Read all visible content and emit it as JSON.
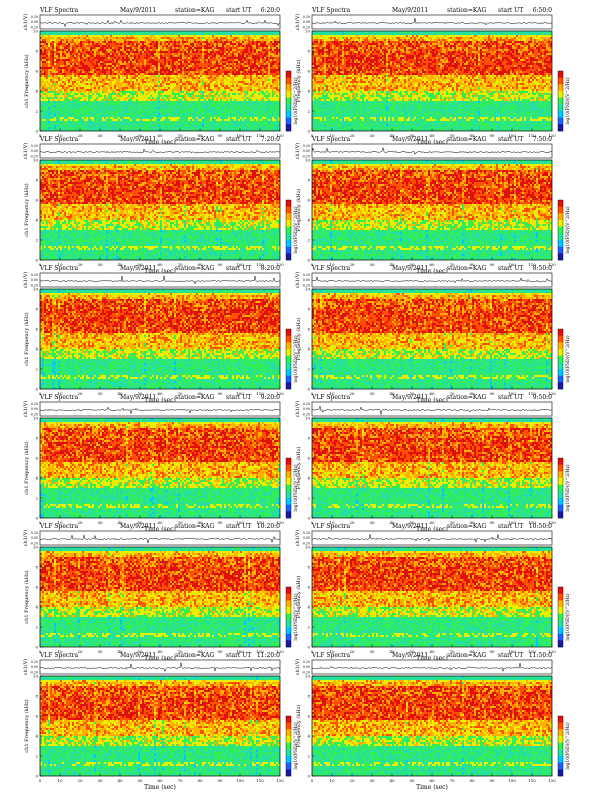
{
  "figure_title": "VLF Spectra",
  "date": "May/9/2011",
  "station_label": "station=KAG",
  "start_label": "start UT",
  "y_label_top": "ch1(V)",
  "y_label_bottom": "ch1\nFrequency (kHz)",
  "y_label_bottom_right": "Frequency (kHz)",
  "x_label": "Time (sec)",
  "colorbar_label": "log10(PSD)(V^2/Hz)",
  "palette": [
    "#1a1aa0",
    "#1f5fff",
    "#00c8ff",
    "#25e0a0",
    "#33ee55",
    "#e8f000",
    "#ffb000",
    "#ff5000",
    "#e01010",
    "#ffffff"
  ],
  "chart_data": [
    {
      "type": "heatmap",
      "panel": "r1-left",
      "start_ut": "6:20:0",
      "xlim": [
        0,
        120
      ],
      "xticks": [
        0,
        10,
        20,
        30,
        40,
        50,
        60,
        70,
        80,
        90,
        100,
        110,
        120
      ],
      "ylim_freq": [
        0,
        10
      ],
      "yticks_freq": [
        0,
        2,
        4,
        6,
        8,
        10
      ],
      "ylim_volt": [
        -0.2,
        0.2
      ],
      "yticks_volt": [
        "0.20",
        "0.00",
        "-0.20"
      ]
    },
    {
      "type": "heatmap",
      "panel": "r1-right",
      "start_ut": "6:50:0",
      "xlim": [
        0,
        120
      ],
      "xticks": [
        0,
        10,
        20,
        30,
        40,
        50,
        60,
        70,
        80,
        90,
        100,
        110,
        120
      ],
      "ylim_freq": [
        0,
        10
      ],
      "yticks_freq": [
        0,
        2,
        4,
        6,
        8,
        10
      ],
      "ylim_volt": [
        -0.2,
        0.2
      ],
      "yticks_volt": [
        "0.20",
        "0.00",
        "-0.20"
      ]
    },
    {
      "type": "heatmap",
      "panel": "r2-left",
      "start_ut": "7:20:0",
      "xlim": [
        0,
        120
      ],
      "xticks": [
        0,
        10,
        20,
        30,
        40,
        50,
        60,
        70,
        80,
        90,
        100,
        110,
        120
      ],
      "ylim_freq": [
        0,
        10
      ],
      "yticks_freq": [
        0,
        2,
        4,
        6,
        8,
        10
      ],
      "ylim_volt": [
        -0.2,
        0.2
      ],
      "yticks_volt": [
        "0.20",
        "0.00",
        "-0.20"
      ]
    },
    {
      "type": "heatmap",
      "panel": "r2-right",
      "start_ut": "7:50:0",
      "xlim": [
        0,
        120
      ],
      "xticks": [
        0,
        10,
        20,
        30,
        40,
        50,
        60,
        70,
        80,
        90,
        100,
        110,
        120
      ],
      "ylim_freq": [
        0,
        10
      ],
      "yticks_freq": [
        0,
        2,
        4,
        6,
        8,
        10
      ],
      "ylim_volt": [
        -0.2,
        0.2
      ],
      "yticks_volt": [
        "0.20",
        "0.00",
        "-0.20"
      ]
    },
    {
      "type": "heatmap",
      "panel": "r3-left",
      "start_ut": "8:20:0",
      "xlim": [
        0,
        120
      ],
      "xticks": [
        0,
        10,
        20,
        30,
        40,
        50,
        60,
        70,
        80,
        90,
        100,
        110,
        120
      ],
      "ylim_freq": [
        0,
        10
      ],
      "yticks_freq": [
        0,
        2,
        4,
        6,
        8,
        10
      ],
      "ylim_volt": [
        -0.2,
        0.2
      ],
      "yticks_volt": [
        "0.20",
        "0.00",
        "-0.20"
      ]
    },
    {
      "type": "heatmap",
      "panel": "r3-right",
      "start_ut": "8:50:0",
      "xlim": [
        0,
        120
      ],
      "xticks": [
        0,
        10,
        20,
        30,
        40,
        50,
        60,
        70,
        80,
        90,
        100,
        110,
        120
      ],
      "ylim_freq": [
        0,
        10
      ],
      "yticks_freq": [
        0,
        2,
        4,
        6,
        8,
        10
      ],
      "ylim_volt": [
        -0.2,
        0.2
      ],
      "yticks_volt": [
        "0.20",
        "0.00",
        "-0.20"
      ]
    },
    {
      "type": "heatmap",
      "panel": "r4-left",
      "start_ut": "9:20:0",
      "xlim": [
        0,
        120
      ],
      "xticks": [
        0,
        10,
        20,
        30,
        40,
        50,
        60,
        70,
        80,
        90,
        100,
        110,
        120
      ],
      "ylim_freq": [
        0,
        10
      ],
      "yticks_freq": [
        0,
        2,
        4,
        6,
        8,
        10
      ],
      "ylim_volt": [
        -0.2,
        0.2
      ],
      "yticks_volt": [
        "0.20",
        "0.00",
        "-0.20"
      ]
    },
    {
      "type": "heatmap",
      "panel": "r4-right",
      "start_ut": "9:50:0",
      "xlim": [
        0,
        120
      ],
      "xticks": [
        0,
        10,
        20,
        30,
        40,
        50,
        60,
        70,
        80,
        90,
        100,
        110,
        120
      ],
      "ylim_freq": [
        0,
        10
      ],
      "yticks_freq": [
        0,
        2,
        4,
        6,
        8,
        10
      ],
      "ylim_volt": [
        -0.2,
        0.2
      ],
      "yticks_volt": [
        "0.20",
        "0.00",
        "-0.20"
      ]
    },
    {
      "type": "heatmap",
      "panel": "r5-left",
      "start_ut": "10:20:0",
      "xlim": [
        0,
        120
      ],
      "xticks": [
        0,
        10,
        20,
        30,
        40,
        50,
        60,
        70,
        80,
        90,
        100,
        110,
        120
      ],
      "ylim_freq": [
        0,
        10
      ],
      "yticks_freq": [
        0,
        2,
        4,
        6,
        8,
        10
      ],
      "ylim_volt": [
        -0.2,
        0.2
      ],
      "yticks_volt": [
        "0.20",
        "0.00",
        "-0.20"
      ]
    },
    {
      "type": "heatmap",
      "panel": "r5-right",
      "start_ut": "10:50:0",
      "xlim": [
        0,
        120
      ],
      "xticks": [
        0,
        10,
        20,
        30,
        40,
        50,
        60,
        70,
        80,
        90,
        100,
        110,
        120
      ],
      "ylim_freq": [
        0,
        10
      ],
      "yticks_freq": [
        0,
        2,
        4,
        6,
        8,
        10
      ],
      "ylim_volt": [
        -0.2,
        0.2
      ],
      "yticks_volt": [
        "0.20",
        "0.00",
        "-0.20"
      ]
    },
    {
      "type": "heatmap",
      "panel": "r6-left",
      "start_ut": "11:20:0",
      "xlim": [
        0,
        120
      ],
      "xticks": [
        0,
        10,
        20,
        30,
        40,
        50,
        60,
        70,
        80,
        90,
        100,
        110,
        120
      ],
      "ylim_freq": [
        0,
        10
      ],
      "yticks_freq": [
        0,
        2,
        4,
        6,
        8,
        10
      ],
      "ylim_volt": [
        -0.2,
        0.2
      ],
      "yticks_volt": [
        "0.20",
        "0.00",
        "-0.20"
      ]
    },
    {
      "type": "heatmap",
      "panel": "r6-right",
      "start_ut": "11:50:0",
      "xlim": [
        0,
        120
      ],
      "xticks": [
        0,
        10,
        20,
        30,
        40,
        50,
        60,
        70,
        80,
        90,
        100,
        110,
        120
      ],
      "ylim_freq": [
        0,
        10
      ],
      "yticks_freq": [
        0,
        2,
        4,
        6,
        8,
        10
      ],
      "ylim_volt": [
        -0.2,
        0.2
      ],
      "yticks_volt": [
        "0.20",
        "0.00",
        "-0.20"
      ]
    }
  ]
}
